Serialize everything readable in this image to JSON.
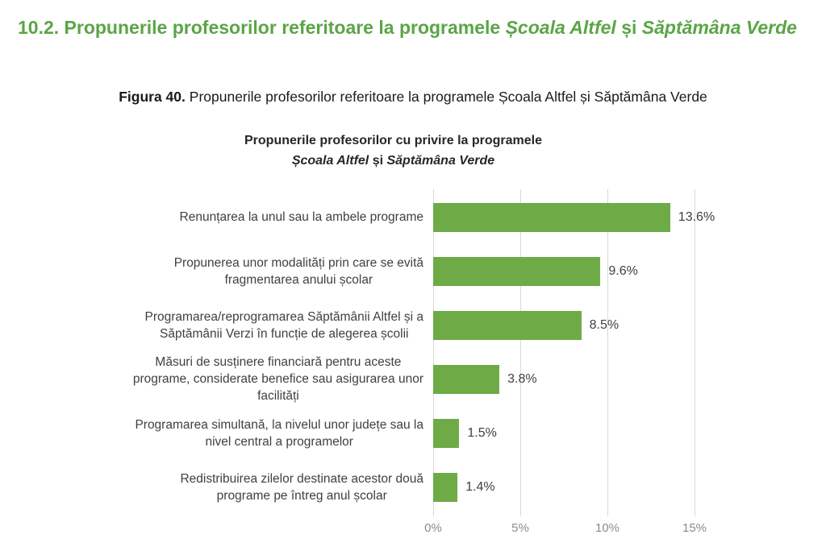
{
  "page": {
    "heading": {
      "lead": "10.2. Propunerile profesorilor referitoare la programele",
      "italic1": "Școala Altfel",
      "conj": "și",
      "italic2": "Săptămâna Verde",
      "color": "#5aa546"
    },
    "caption": {
      "label": "Figura 40.",
      "text": "Propunerile profesorilor referitoare la programele Școala Altfel și Săptămâna Verde"
    }
  },
  "chart": {
    "title_line1": "Propunerile profesorilor cu privire la programele",
    "title_line2_italic1": "Școala Altfel",
    "title_line2_conj": " și ",
    "title_line2_italic2": "Săptămâna Verde"
  },
  "chart_data": {
    "type": "bar",
    "orientation": "horizontal",
    "title": "Propunerile profesorilor cu privire la programele Școala Altfel și Săptămâna Verde",
    "categories": [
      "Renunțarea la unul sau la ambele programe",
      "Propunerea unor modalități prin care se evită\nfragmentarea anului școlar",
      "Programarea/reprogramarea Săptămânii Altfel și a\nSăptămânii Verzi în funcție de alegerea școlii",
      "Măsuri de susținere financiară pentru aceste\nprograme, considerate benefice sau asigurarea unor\nfacilități",
      "Programarea simultană, la nivelul unor județe sau la\nnivel central a programelor",
      "Redistribuirea zilelor destinate acestor două\nprograme pe întreg anul școlar"
    ],
    "values": [
      13.6,
      9.6,
      8.5,
      3.8,
      1.5,
      1.4
    ],
    "value_labels": [
      "13.6%",
      "9.6%",
      "8.5%",
      "3.8%",
      "1.5%",
      "1.4%"
    ],
    "x_ticks": [
      "0%",
      "5%",
      "10%",
      "15%"
    ],
    "xlim": [
      0,
      20
    ],
    "bar_color": "#6eab47",
    "gridline_color": "#d9d9d9",
    "grid": true,
    "legend": false
  }
}
